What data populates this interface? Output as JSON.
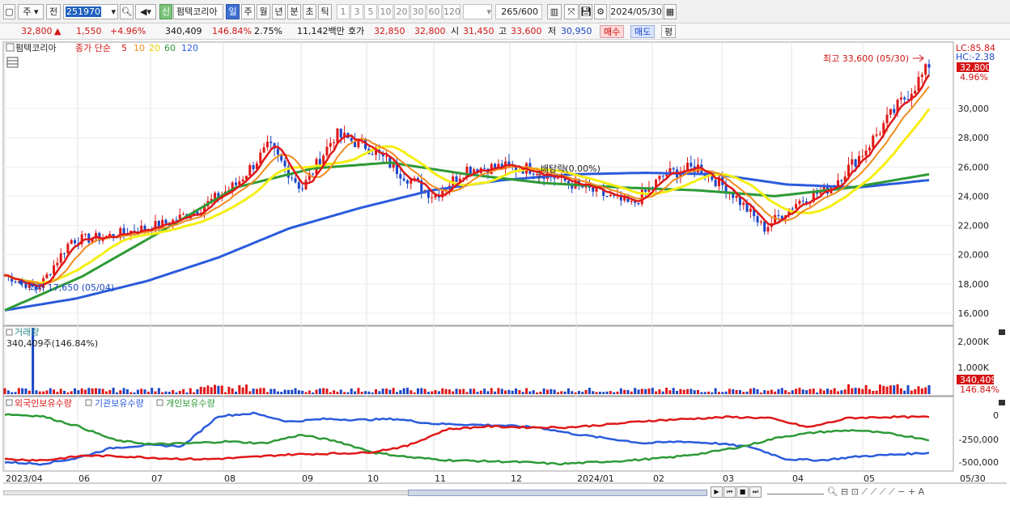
{
  "toolbar": {
    "period_label": "주",
    "prev_label": "전",
    "code": "251970",
    "new_badge": "신",
    "stock_name": "펌텍코리아",
    "timeframes": [
      "일",
      "주",
      "월",
      "년",
      "분",
      "초",
      "틱"
    ],
    "active_timeframe": "일",
    "minute_units": [
      "1",
      "3",
      "5",
      "10",
      "20",
      "30",
      "60",
      "120"
    ],
    "count_value": "265",
    "count_total": "/600",
    "date_value": "2024/05/30"
  },
  "quote": {
    "price": "32,800",
    "change_arrow": "▲",
    "change": "1,550",
    "change_pct": "+4.96%",
    "volume": "340,409",
    "volume_ratio": "146.84%",
    "turnover_pct": "2.75%",
    "amount": "11,142백만",
    "ask_label": "호가",
    "ask1": "32,850",
    "ask2": "32,800",
    "open_label": "시",
    "open": "31,450",
    "high_label": "고",
    "high": "33,600",
    "low_label": "저",
    "low": "30,950",
    "buy_label": "매수",
    "sell_label": "매도",
    "avg_label": "평"
  },
  "price_panel": {
    "stock_label": "펌텍코리아",
    "ma_title": "종가 단순",
    "ma_periods": [
      "5",
      "10",
      "20",
      "60",
      "120"
    ],
    "ma_colors": [
      "#e01818",
      "#f08c1e",
      "#f5ee12",
      "#2d9a36",
      "#2b5bdc"
    ],
    "lc_label": "LC:85.84",
    "hc_label": "HC:-2.38",
    "last_price_tag": "32,800",
    "last_pct_tag": "4.96%",
    "high_annot": "최고 33,600 (05/30)",
    "low_annot": "최저 17,650 (05/04)",
    "dividend_annot": "배당락(0.00%)",
    "y_ticks": [
      "30,000",
      "28,000",
      "26,000",
      "24,000",
      "22,000",
      "20,000",
      "18,000",
      "16,000"
    ]
  },
  "volume_panel": {
    "title": "거래량",
    "current_label": "340,409주(146.84%)",
    "y_ticks": [
      "2,000K",
      "1,000K"
    ],
    "last_tag": "340,409",
    "last_pct_tag": "146.84%"
  },
  "holding_panel": {
    "series_labels": [
      "외국인보유수량",
      "기관보유수량",
      "개인보유수량"
    ],
    "series_colors": [
      "#e01818",
      "#2b5bdc",
      "#2d9a36"
    ],
    "y_ticks": [
      "0",
      "-250,000",
      "-500,000"
    ]
  },
  "x_axis": {
    "labels": [
      "2023/04",
      "06",
      "07",
      "08",
      "09",
      "10",
      "11",
      "12",
      "2024/01",
      "02",
      "03",
      "04",
      "05"
    ],
    "right_label": "05/30"
  },
  "chart_data": {
    "type": "candlestick",
    "title": "펌텍코리아",
    "x_range": [
      "2023/04",
      "2024/05/30"
    ],
    "price_ylim": [
      15000,
      34500
    ],
    "month_labels": [
      "2023/04",
      "06",
      "07",
      "08",
      "09",
      "10",
      "11",
      "12",
      "2024/01",
      "02",
      "03",
      "04",
      "05"
    ],
    "close_path": [
      {
        "x": "2023/04",
        "y": 18600
      },
      {
        "x": "2023/05/04",
        "y": 17650
      },
      {
        "x": "2023/05",
        "y": 21000
      },
      {
        "x": "2023/06",
        "y": 21200
      },
      {
        "x": "2023/06b",
        "y": 21700
      },
      {
        "x": "2023/07",
        "y": 22200
      },
      {
        "x": "2023/07b",
        "y": 23300
      },
      {
        "x": "2023/08",
        "y": 24800
      },
      {
        "x": "2023/08b",
        "y": 27400
      },
      {
        "x": "2023/08c",
        "y": 24500
      },
      {
        "x": "2023/09",
        "y": 28200
      },
      {
        "x": "2023/09b",
        "y": 27400
      },
      {
        "x": "2023/10",
        "y": 25600
      },
      {
        "x": "2023/10b",
        "y": 24000
      },
      {
        "x": "2023/11",
        "y": 25900
      },
      {
        "x": "2023/11b",
        "y": 26000
      },
      {
        "x": "2023/12",
        "y": 25900
      },
      {
        "x": "2023/12b",
        "y": 25000
      },
      {
        "x": "2024/01",
        "y": 24200
      },
      {
        "x": "2024/01b",
        "y": 23400
      },
      {
        "x": "2024/02",
        "y": 25500
      },
      {
        "x": "2024/02b",
        "y": 26000
      },
      {
        "x": "2024/03",
        "y": 24300
      },
      {
        "x": "2024/03b",
        "y": 21800
      },
      {
        "x": "2024/04",
        "y": 23600
      },
      {
        "x": "2024/04b",
        "y": 24600
      },
      {
        "x": "2024/05",
        "y": 27000
      },
      {
        "x": "2024/05b",
        "y": 30000
      },
      {
        "x": "2024/05/30",
        "y": 32800
      }
    ],
    "ma120_path": [
      16200,
      17000,
      18200,
      19800,
      21800,
      23200,
      24400,
      25100,
      25500,
      25600,
      25500,
      24800,
      24600,
      25100
    ],
    "ma60_path": [
      16200,
      18500,
      21500,
      24600,
      25900,
      26300,
      25500,
      24900,
      24600,
      24400,
      24000,
      24600,
      25500
    ]
  }
}
